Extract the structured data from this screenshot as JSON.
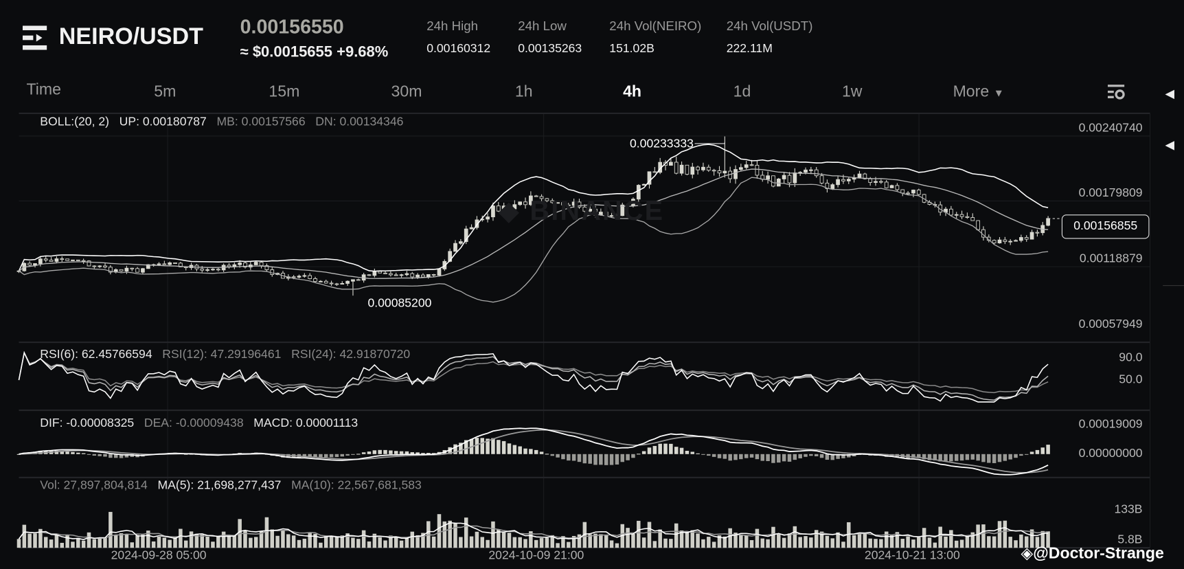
{
  "header": {
    "pair": "NEIRO/USDT",
    "last_price": "0.00156550",
    "usd_price": "≈ $0.0015655",
    "change": "+9.68%",
    "stats": [
      {
        "label": "24h High",
        "value": "0.00160312"
      },
      {
        "label": "24h Low",
        "value": "0.00135263"
      },
      {
        "label": "24h Vol(NEIRO)",
        "value": "151.02B"
      },
      {
        "label": "24h Vol(USDT)",
        "value": "222.11M"
      }
    ]
  },
  "tabs": [
    {
      "label": "Time"
    },
    {
      "label": "5m"
    },
    {
      "label": "15m"
    },
    {
      "label": "30m"
    },
    {
      "label": "1h"
    },
    {
      "label": "4h",
      "active": true
    },
    {
      "label": "1d"
    },
    {
      "label": "1w"
    },
    {
      "label": "More"
    }
  ],
  "icons": {
    "menu": "menu-icon",
    "settings": "chart-settings-icon",
    "collapse": "triangle-left-icon"
  },
  "boll": {
    "title": "BOLL:(20, 2)",
    "up": "UP: 0.00180787",
    "mb": "MB: 0.00157566",
    "dn": "DN: 0.00134346"
  },
  "rsi": {
    "r6": "RSI(6): 62.45766594",
    "r12": "RSI(12): 47.29196461",
    "r24": "RSI(24): 42.91870720"
  },
  "macd": {
    "dif": "DIF: -0.00008325",
    "dea": "DEA: -0.00009438",
    "macd": "MACD: 0.00001113"
  },
  "vol": {
    "vol": "Vol: 27,897,804,814",
    "ma5": "MA(5): 21,698,277,437",
    "ma10": "MA(10): 22,567,681,583"
  },
  "axes": {
    "price": [
      "0.00240740",
      "0.00179809",
      "0.00118879",
      "0.00057949"
    ],
    "rsi": [
      "90.0",
      "50.0"
    ],
    "macd": [
      "0.00019009",
      "0.00000000"
    ],
    "vol": [
      "133B",
      "5.8B"
    ],
    "dates": [
      "2024-09-28 05:00",
      "2024-10-09 21:00",
      "2024-10-21 13:00"
    ]
  },
  "current_price": "0.00156855",
  "annotations": {
    "high": "0.00233333",
    "low": "0.00085200"
  },
  "watermark": "BINANCE",
  "credit": "@Doctor-Strange",
  "chart_data": {
    "type": "candlestick",
    "interval": "4h",
    "closes": [
      0.00111,
      0.00118,
      0.00118,
      0.00117,
      0.00112,
      0.00108,
      0.00109,
      0.00114,
      0.00113,
      0.00111,
      0.0011,
      0.00113,
      0.00116,
      0.00104,
      0.00103,
      0.001,
      0.00096,
      0.001,
      0.00106,
      0.00104,
      0.00103,
      0.00105,
      0.0013,
      0.00155,
      0.00165,
      0.0017,
      0.00175,
      0.00168,
      0.00175,
      0.00163,
      0.00158,
      0.00175,
      0.00205,
      0.00205,
      0.002,
      0.00205,
      0.00198,
      0.00207,
      0.0019,
      0.00195,
      0.00198,
      0.00185,
      0.00197,
      0.00192,
      0.00186,
      0.00182,
      0.00167,
      0.00164,
      0.00155,
      0.00137,
      0.00135,
      0.00139,
      0.00157
    ],
    "high_max": 0.00233333,
    "low_min": 0.000852,
    "price_range": [
      0.00057949,
      0.0024074
    ],
    "colors": {
      "candle": "#d8d8d0",
      "line": "#ffffff",
      "line2": "#9a9a9a"
    }
  }
}
